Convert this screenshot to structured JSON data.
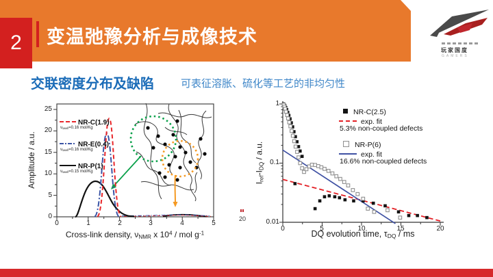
{
  "slide": {
    "number": "2",
    "title": "变温弛豫分析与成像技术"
  },
  "logo": {
    "cn": "玩家国度",
    "en": "GAMERS"
  },
  "subtitle": {
    "heading": "交联密度分布及缺陷",
    "note": "可表征溶胀、硫化等工艺的非均匀性"
  },
  "stray": {
    "text": "20"
  },
  "colors": {
    "header_orange": "#e8792c",
    "accent_red": "#d3201f",
    "footer_red": "#d6292b",
    "heading_blue": "#1b6cb8",
    "note_blue": "#3e86c8",
    "curve_red": "#e8262a",
    "curve_blue": "#3b54a5",
    "curve_black": "#111111",
    "circle_green": "#0ba14b",
    "circle_orange": "#f59a23",
    "fit_red": "#e31e24",
    "fit_blue": "#3f51a3"
  },
  "chart_data": [
    {
      "type": "line",
      "title": "Cross-link density distribution",
      "xlabel": "Cross-link density, v_NMR x 10^4 / mol g^-1",
      "xlabel_parts": {
        "p1": "Cross-link density, ν",
        "s1": "NMR",
        "p2": " x 10",
        "sup1": "4",
        "p3": " / mol g",
        "sup2": "-1"
      },
      "ylabel": "Amplitude / a.u.",
      "xlim": [
        0,
        5
      ],
      "ylim": [
        0,
        25
      ],
      "grid": false,
      "legend_position": "upper left",
      "x_ticks": [
        "0",
        "1",
        "2",
        "3",
        "4",
        "5"
      ],
      "y_ticks": [
        "0",
        "5",
        "10",
        "15",
        "20",
        "25"
      ],
      "series": [
        {
          "name": "NR-C(1.9)",
          "style": "dashed",
          "color": "#e8262a",
          "note_parts": {
            "p": "ν",
            "s": "swell",
            "r": "=0.16 mol/Kg"
          },
          "peak_center": 1.67,
          "peak_height": 23,
          "peak_base_width": 0.75
        },
        {
          "name": "NR-E(0.4)",
          "style": "dash-dot",
          "color": "#3b54a5",
          "note_parts": {
            "p": "ν",
            "s": "swell",
            "r": "=0.16 mol/Kg"
          },
          "peak_center": 1.6,
          "peak_height": 19.5,
          "peak_base_width": 0.75
        },
        {
          "name": "NR-P(1)",
          "style": "solid",
          "color": "#111111",
          "note_parts": {
            "p": "ν",
            "s": "swell",
            "r": "=0.15 mol/Kg"
          },
          "peak_center": 1.22,
          "peak_height": 8.3,
          "peak_base_width": 1.7,
          "secondary_peak": {
            "center": 4.0,
            "height": 0.5
          }
        }
      ],
      "annotations": {
        "network_sketch": "entangled polymer chains with cross-link dots",
        "green_dotted_circle": "well cross-linked network region",
        "orange_dotted_circle": "defect region",
        "green_arrow_points_to": [
          1.75,
          6
        ],
        "orange_arrow_points_to": [
          3.9,
          0.6
        ]
      }
    },
    {
      "type": "scatter",
      "xlabel": "DQ evolution time, t_DQ / ms",
      "xlabel_parts": {
        "p1": "DQ evolution time, τ",
        "s1": "DQ",
        "p2": " / ms"
      },
      "ylabel": "I_ref - I_DQ / a.u.",
      "ylabel_parts": {
        "p1": "I",
        "s1": "ref",
        "p2": "-I",
        "s2": "DQ",
        "p3": " / a.u."
      },
      "xlim": [
        0,
        20
      ],
      "ylim": [
        0.01,
        1
      ],
      "yscale": "log",
      "grid": false,
      "legend_position": "upper right",
      "x_ticks": [
        "0",
        "5",
        "10",
        "15",
        "20"
      ],
      "y_ticks": [
        "1",
        "0.1",
        "0.01"
      ],
      "series": [
        {
          "name": "NR-C(2.5)",
          "marker": "filled-square",
          "color": "#141414",
          "points": [
            [
              0.1,
              1.0
            ],
            [
              0.18,
              0.97
            ],
            [
              0.27,
              0.93
            ],
            [
              0.38,
              0.87
            ],
            [
              0.5,
              0.8
            ],
            [
              0.63,
              0.72
            ],
            [
              0.77,
              0.64
            ],
            [
              0.92,
              0.56
            ],
            [
              1.08,
              0.48
            ],
            [
              1.25,
              0.41
            ],
            [
              1.42,
              0.34
            ],
            [
              1.6,
              0.28
            ],
            [
              1.8,
              0.23
            ],
            [
              2.0,
              0.19
            ],
            [
              2.2,
              0.16
            ],
            [
              2.45,
              0.13
            ],
            [
              1.55,
              0.045
            ],
            [
              4.1,
              0.017
            ],
            [
              4.7,
              0.023
            ],
            [
              5.3,
              0.027
            ],
            [
              5.9,
              0.028
            ],
            [
              6.6,
              0.027
            ],
            [
              7.2,
              0.026
            ],
            [
              7.9,
              0.024
            ],
            [
              9.0,
              0.023
            ],
            [
              10.2,
              0.023
            ],
            [
              11.5,
              0.021
            ],
            [
              13.0,
              0.019
            ],
            [
              14.7,
              0.015
            ],
            [
              16.0,
              0.013
            ],
            [
              17.1,
              0.013
            ],
            [
              18.3,
              0.012
            ]
          ]
        },
        {
          "name": "NR-P(6)",
          "marker": "open-square",
          "color": "#8f8f8f",
          "points": [
            [
              0.12,
              0.97
            ],
            [
              0.2,
              0.9
            ],
            [
              0.3,
              0.83
            ],
            [
              0.42,
              0.74
            ],
            [
              0.55,
              0.65
            ],
            [
              0.68,
              0.57
            ],
            [
              0.82,
              0.49
            ],
            [
              0.97,
              0.42
            ],
            [
              1.12,
              0.35
            ],
            [
              1.28,
              0.29
            ],
            [
              1.45,
              0.235
            ],
            [
              1.63,
              0.19
            ],
            [
              1.82,
              0.155
            ],
            [
              2.0,
              0.125
            ],
            [
              2.2,
              0.1
            ],
            [
              2.45,
              0.082
            ],
            [
              2.7,
              0.071
            ],
            [
              3.0,
              0.079
            ],
            [
              3.35,
              0.088
            ],
            [
              3.7,
              0.094
            ],
            [
              4.1,
              0.093
            ],
            [
              4.5,
              0.089
            ],
            [
              4.9,
              0.085
            ],
            [
              5.3,
              0.08
            ],
            [
              5.8,
              0.074
            ],
            [
              6.3,
              0.067
            ],
            [
              6.8,
              0.06
            ],
            [
              7.3,
              0.054
            ],
            [
              7.8,
              0.048
            ],
            [
              8.3,
              0.042
            ],
            [
              8.9,
              0.035
            ],
            [
              9.5,
              0.03
            ],
            [
              10.2,
              0.025
            ],
            [
              10.8,
              0.017
            ],
            [
              11.6,
              0.015
            ],
            [
              13.3,
              0.016
            ],
            [
              14.9,
              0.012
            ]
          ]
        }
      ],
      "fits": [
        {
          "name": "exp. fit",
          "for": "NR-C(2.5)",
          "style": "dashed",
          "color": "#e31e24",
          "line": [
            [
              0,
              0.053
            ],
            [
              20,
              0.0105
            ]
          ],
          "caption": "5.3% non-coupled defects"
        },
        {
          "name": "exp. fit",
          "for": "NR-P(6)",
          "style": "solid",
          "color": "#3f51a3",
          "line": [
            [
              0,
              0.166
            ],
            [
              14.3,
              0.0095
            ]
          ],
          "caption": "16.6% non-coupled defects"
        }
      ]
    }
  ]
}
